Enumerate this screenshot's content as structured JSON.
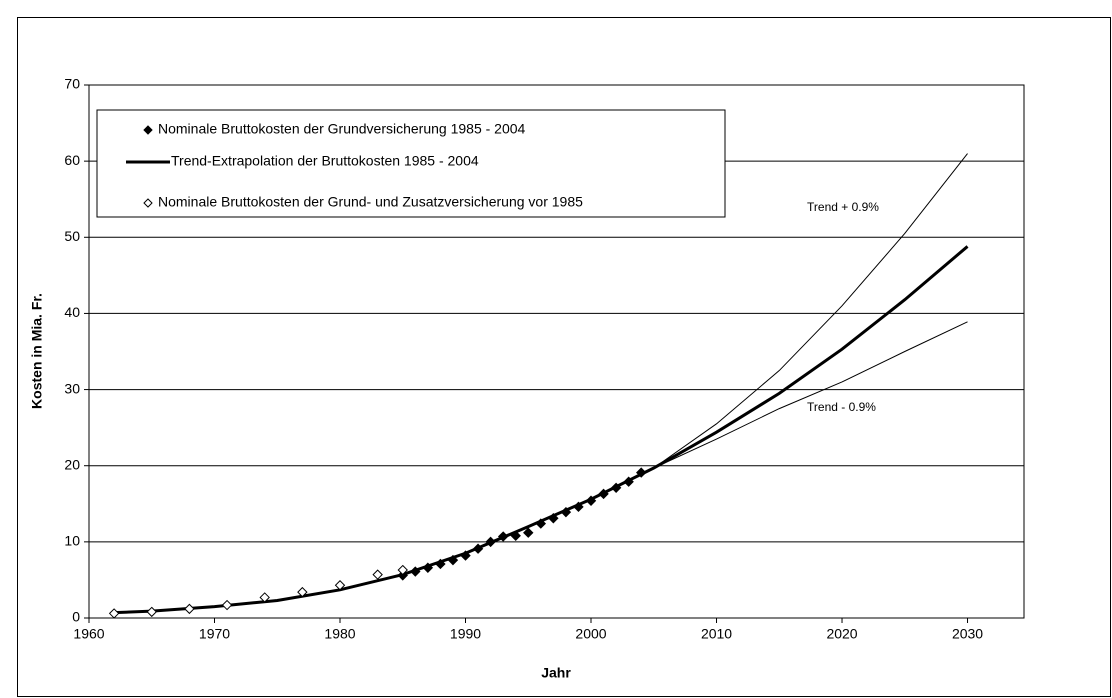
{
  "chart_data": {
    "type": "scatter-line",
    "x_label": "Jahr",
    "y_label": "Kosten in Mia. Fr.",
    "xlim": [
      1960,
      2034.5
    ],
    "xticks": [
      1960,
      1970,
      1980,
      1990,
      2000,
      2010,
      2020,
      2030
    ],
    "ylim": [
      0,
      70
    ],
    "yticks": [
      0,
      10,
      20,
      30,
      40,
      50,
      60,
      70
    ],
    "grid": true,
    "series": [
      {
        "name": "Nominale Bruttokosten der Grundversicherung 1985 - 2004",
        "color": "#000000",
        "marker": "diamond-filled",
        "in_legend": true,
        "x": [
          1985,
          1986,
          1987,
          1988,
          1989,
          1990,
          1991,
          1992,
          1993,
          1994,
          1995,
          1996,
          1997,
          1998,
          1999,
          2000,
          2001,
          2002,
          2003,
          2004
        ],
        "values": [
          5.6,
          6.1,
          6.6,
          7.1,
          7.6,
          8.2,
          9.1,
          10.0,
          10.7,
          10.8,
          11.2,
          12.4,
          13.1,
          13.9,
          14.6,
          15.4,
          16.3,
          17.1,
          17.9,
          19.1
        ]
      },
      {
        "name": "Trend-Extrapolation der Bruttokosten 1985 - 2004",
        "color": "#000000",
        "marker": "line",
        "line_width": 3,
        "in_legend": true,
        "x": [
          1962,
          1965,
          1970,
          1975,
          1980,
          1985,
          1990,
          1995,
          2000,
          2005,
          2010,
          2015,
          2020,
          2025,
          2030
        ],
        "values": [
          0.7,
          0.9,
          1.5,
          2.3,
          3.7,
          5.7,
          8.5,
          12.0,
          15.6,
          19.7,
          24.4,
          29.5,
          35.3,
          41.8,
          48.8
        ]
      },
      {
        "name": "Nominale Bruttokosten der Grund- und Zusatzversicherung vor 1985",
        "color": "#000000",
        "marker": "diamond-open",
        "in_legend": true,
        "x": [
          1962,
          1965,
          1968,
          1971,
          1974,
          1977,
          1980,
          1983,
          1985
        ],
        "values": [
          0.6,
          0.8,
          1.2,
          1.7,
          2.7,
          3.4,
          4.3,
          5.7,
          6.3
        ]
      },
      {
        "name": "Trend + 0.9%",
        "color": "#000000",
        "marker": "line",
        "line_width": 1,
        "in_legend": false,
        "x": [
          2005,
          2010,
          2015,
          2020,
          2025,
          2030
        ],
        "values": [
          19.7,
          25.5,
          32.5,
          41.0,
          50.5,
          61.0
        ]
      },
      {
        "name": "Trend - 0.9%",
        "color": "#000000",
        "marker": "line",
        "line_width": 1,
        "in_legend": false,
        "x": [
          2005,
          2010,
          2015,
          2020,
          2025,
          2030
        ],
        "values": [
          19.7,
          23.5,
          27.5,
          31.0,
          35.0,
          38.9
        ]
      }
    ]
  }
}
